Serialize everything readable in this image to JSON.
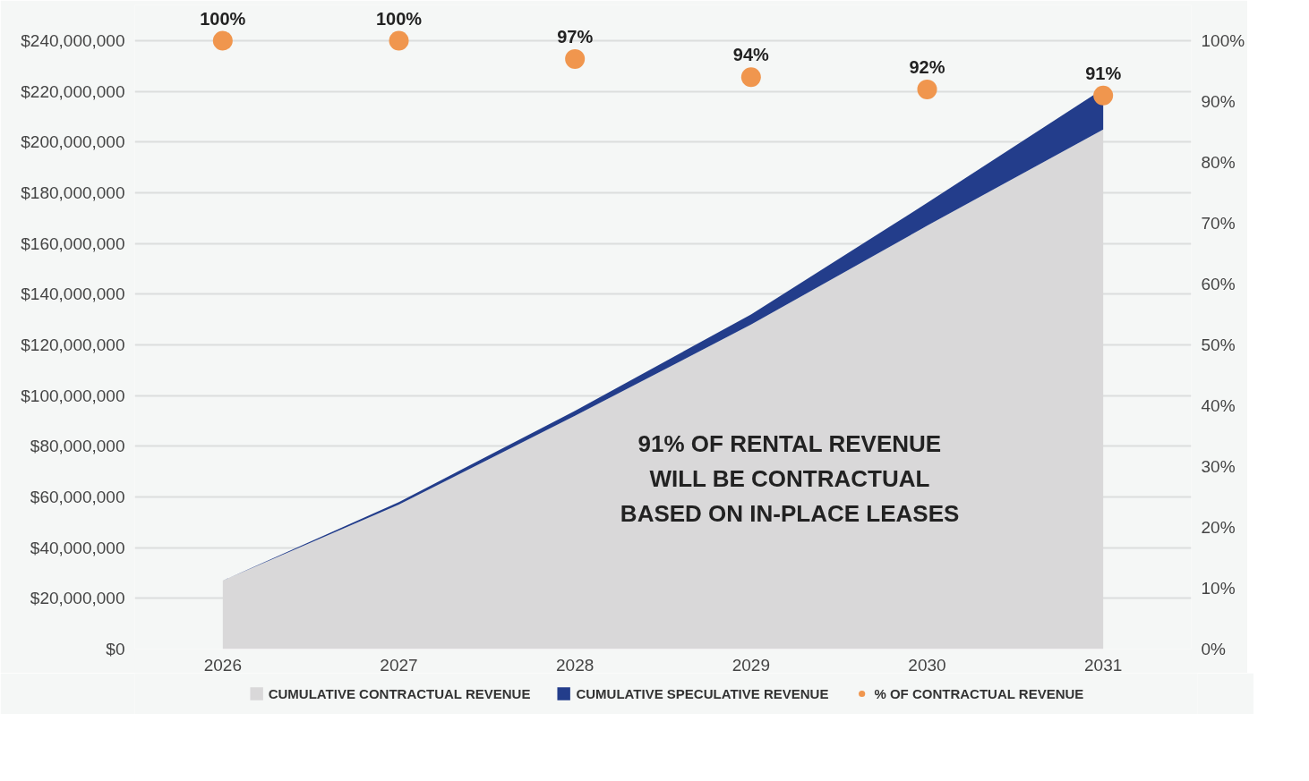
{
  "chart_data": {
    "type": "area",
    "stacked": true,
    "categories": [
      "2026",
      "2027",
      "2028",
      "2029",
      "2030",
      "2031"
    ],
    "series": [
      {
        "name": "CUMULATIVE CONTRACTUAL REVENUE",
        "color": "#d9d8d9",
        "values": [
          27000000,
          57000000,
          92000000,
          128000000,
          167000000,
          205000000
        ]
      },
      {
        "name": "CUMULATIVE SPECULATIVE REVENUE",
        "color": "#233d8b",
        "values": [
          0,
          1000000,
          2000000,
          4000000,
          9000000,
          16000000
        ]
      },
      {
        "name": "% OF CONTRACTUAL REVENUE",
        "type": "scatter",
        "axis": "y2",
        "marker": "circle",
        "color": "#f0964e",
        "values": [
          100,
          100,
          97,
          94,
          92,
          91
        ],
        "value_labels": [
          "100%",
          "100%",
          "97%",
          "94%",
          "92%",
          "91%"
        ]
      }
    ],
    "ylim": [
      0,
      240000000
    ],
    "yticks": [
      {
        "value": 0,
        "label": "$0"
      },
      {
        "value": 20000000,
        "label": "$20,000,000"
      },
      {
        "value": 40000000,
        "label": "$40,000,000"
      },
      {
        "value": 60000000,
        "label": "$60,000,000"
      },
      {
        "value": 80000000,
        "label": "$80,000,000"
      },
      {
        "value": 100000000,
        "label": "$100,000,000"
      },
      {
        "value": 120000000,
        "label": "$120,000,000"
      },
      {
        "value": 140000000,
        "label": "$140,000,000"
      },
      {
        "value": 160000000,
        "label": "$160,000,000"
      },
      {
        "value": 180000000,
        "label": "$180,000,000"
      },
      {
        "value": 200000000,
        "label": "$200,000,000"
      },
      {
        "value": 220000000,
        "label": "$220,000,000"
      },
      {
        "value": 240000000,
        "label": "$240,000,000"
      }
    ],
    "y2lim": [
      0,
      100
    ],
    "y2ticks": [
      {
        "value": 0,
        "label": "0%"
      },
      {
        "value": 10,
        "label": "10%"
      },
      {
        "value": 20,
        "label": "20%"
      },
      {
        "value": 30,
        "label": "30%"
      },
      {
        "value": 40,
        "label": "40%"
      },
      {
        "value": 50,
        "label": "50%"
      },
      {
        "value": 60,
        "label": "60%"
      },
      {
        "value": 70,
        "label": "70%"
      },
      {
        "value": 80,
        "label": "80%"
      },
      {
        "value": 90,
        "label": "90%"
      },
      {
        "value": 100,
        "label": "100%"
      }
    ],
    "grid": "y",
    "legend": "bottom",
    "annotations": [
      "91% OF RENTAL REVENUE\nWILL BE CONTRACTUAL\nBASED ON IN-PLACE LEASES"
    ]
  }
}
